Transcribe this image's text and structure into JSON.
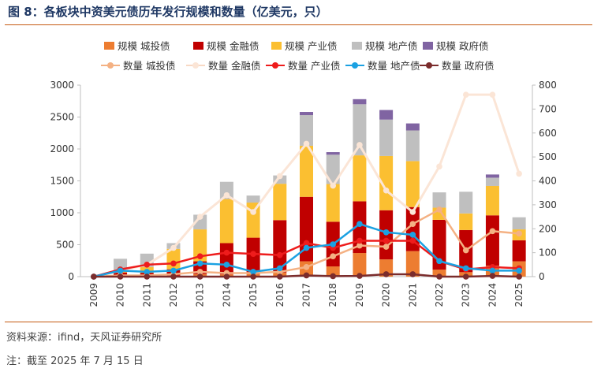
{
  "header": {
    "title": "图 8：各板块中资美元债历年发行规模和数量（亿美元，只）"
  },
  "footer": {
    "source": "资料来源：ifind，天风证券研究所",
    "note": "注：截至 2025 年 7 月 15 日"
  },
  "colors": {
    "city_bar": "#ed7d31",
    "fin_bar": "#c00000",
    "ind_bar": "#fbbf31",
    "prop_bar": "#bfbfbf",
    "gov_bar": "#8064a2",
    "city_line": "#f4b183",
    "fin_line": "#fbe5d6",
    "ind_line": "#ee1c1c",
    "prop_line": "#1ba1e2",
    "gov_line": "#7b2c2c",
    "rule": "#c55a11",
    "axis": "#bfbfbf"
  },
  "chart_data": {
    "type": "bar",
    "title": "各板块中资美元债历年发行规模和数量（亿美元，只）",
    "categories": [
      "2009",
      "2010",
      "2011",
      "2012",
      "2013",
      "2014",
      "2015",
      "2016",
      "2017",
      "2018",
      "2019",
      "2020",
      "2021",
      "2022",
      "2023",
      "2024",
      "2025"
    ],
    "y_left": {
      "min": 0,
      "max": 3000,
      "ticks": [
        0,
        500,
        1000,
        1500,
        2000,
        2500,
        3000
      ]
    },
    "y_right": {
      "min": 0,
      "max": 800,
      "ticks": [
        0,
        100,
        200,
        300,
        400,
        500,
        600,
        700,
        800
      ]
    },
    "bar_series": [
      {
        "name": "规模 城投债",
        "color_key": "city_bar",
        "values": [
          0,
          5,
          10,
          15,
          40,
          35,
          40,
          65,
          240,
          160,
          370,
          270,
          400,
          110,
          70,
          170,
          240
        ]
      },
      {
        "name": "规模 金融债",
        "color_key": "fin_bar",
        "values": [
          0,
          60,
          50,
          100,
          200,
          490,
          570,
          820,
          1010,
          700,
          810,
          770,
          690,
          780,
          660,
          790,
          330
        ]
      },
      {
        "name": "规模 产业债",
        "color_key": "ind_bar",
        "values": [
          0,
          15,
          90,
          320,
          500,
          690,
          550,
          570,
          800,
          590,
          720,
          850,
          720,
          190,
          260,
          460,
          170
        ]
      },
      {
        "name": "规模 地产债",
        "color_key": "prop_bar",
        "values": [
          0,
          200,
          210,
          90,
          230,
          270,
          110,
          130,
          480,
          460,
          800,
          570,
          480,
          240,
          340,
          130,
          190
        ]
      },
      {
        "name": "规模 政府债",
        "color_key": "gov_bar",
        "values": [
          0,
          0,
          0,
          0,
          0,
          0,
          0,
          0,
          50,
          40,
          80,
          150,
          110,
          0,
          0,
          50,
          0
        ]
      }
    ],
    "line_series": [
      {
        "name": "数量 城投债",
        "color_key": "city_line",
        "values": [
          0,
          5,
          5,
          10,
          20,
          15,
          15,
          20,
          40,
          85,
          130,
          125,
          220,
          280,
          110,
          190,
          180
        ]
      },
      {
        "name": "数量 金融债",
        "color_key": "fin_line",
        "values": [
          0,
          25,
          50,
          120,
          250,
          340,
          270,
          420,
          555,
          380,
          550,
          360,
          270,
          460,
          760,
          760,
          430
        ]
      },
      {
        "name": "数量 产业债",
        "color_key": "ind_line",
        "values": [
          0,
          30,
          50,
          55,
          85,
          100,
          95,
          90,
          140,
          120,
          150,
          150,
          150,
          65,
          30,
          40,
          35
        ]
      },
      {
        "name": "数量 地产债",
        "color_key": "prop_line",
        "values": [
          0,
          25,
          20,
          25,
          55,
          50,
          20,
          35,
          120,
          135,
          220,
          185,
          175,
          65,
          35,
          25,
          25
        ]
      },
      {
        "name": "数量 政府债",
        "color_key": "gov_line",
        "values": [
          0,
          0,
          0,
          0,
          0,
          0,
          0,
          0,
          5,
          2,
          3,
          10,
          10,
          0,
          0,
          3,
          0
        ]
      }
    ]
  }
}
